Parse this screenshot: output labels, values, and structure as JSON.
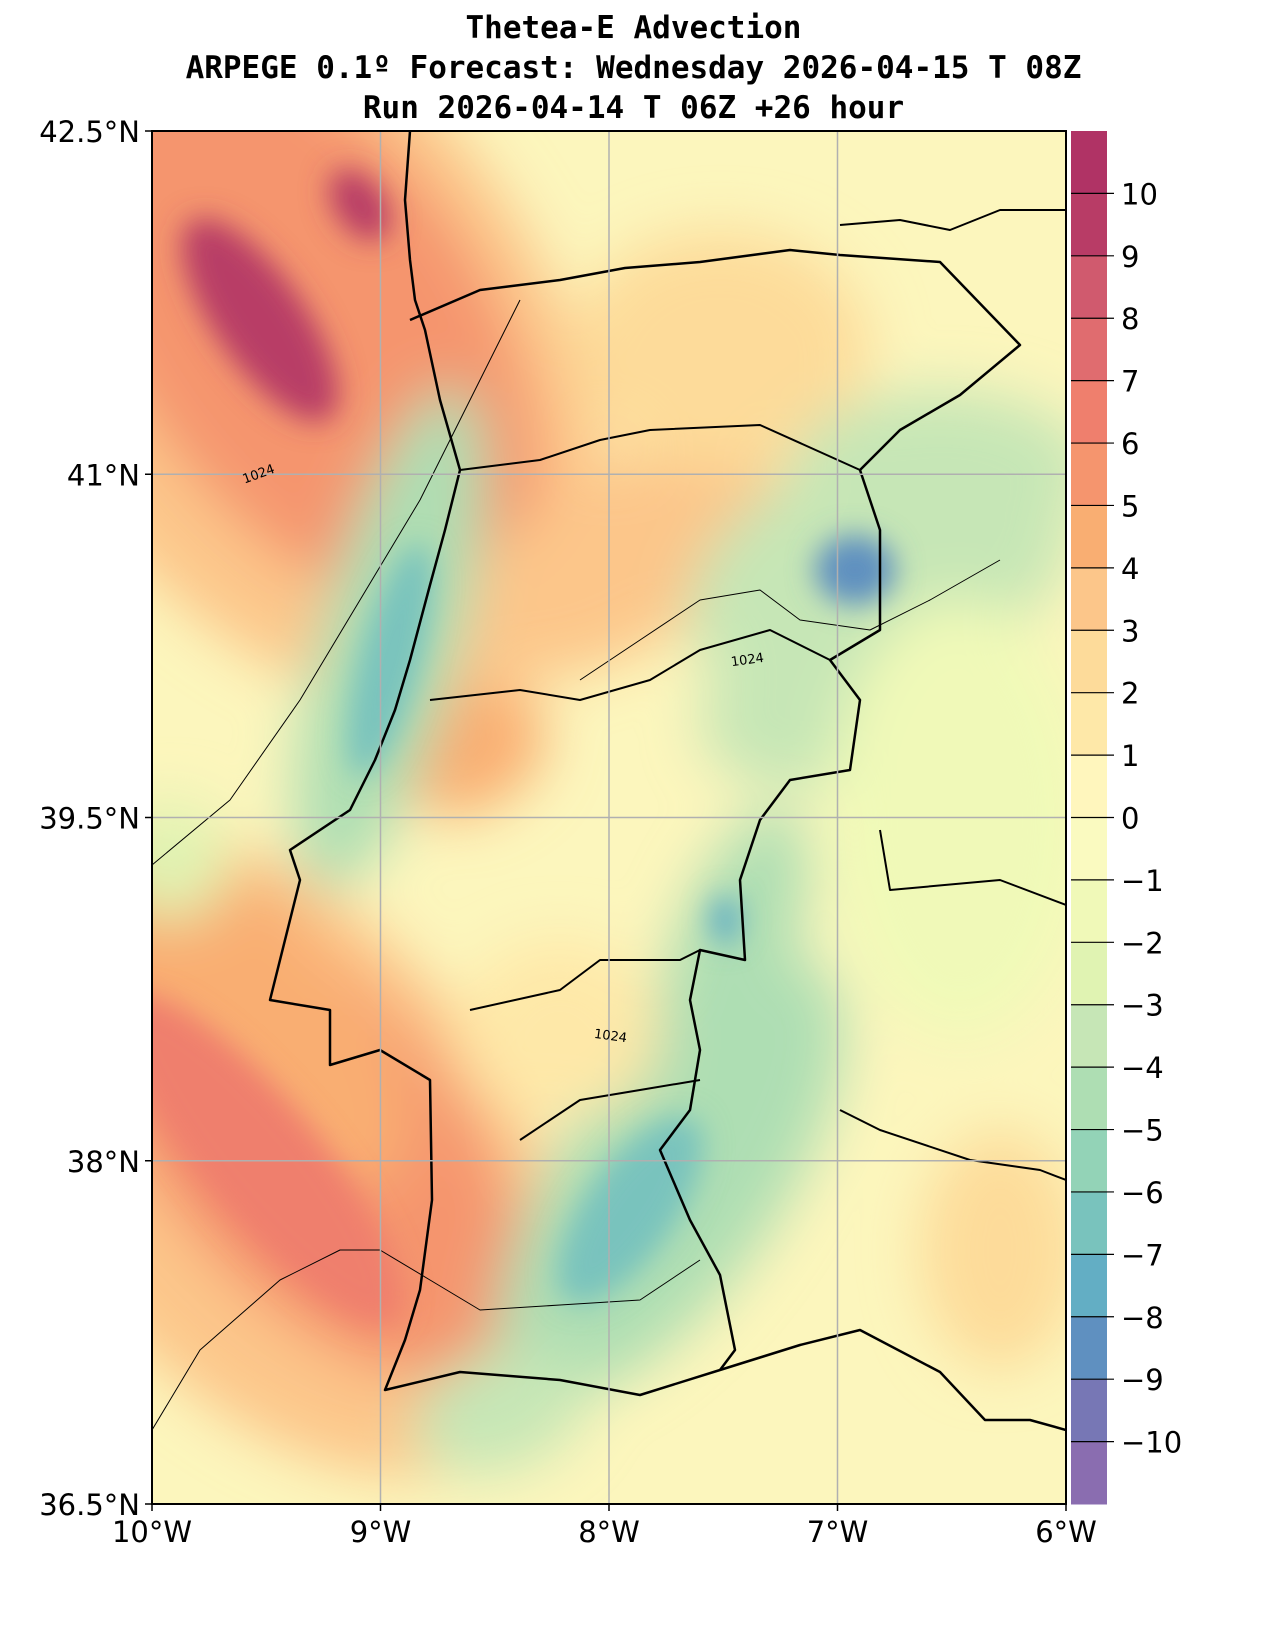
{
  "title": {
    "line1": "Thetea-E Advection",
    "line2": "ARPEGE 0.1º Forecast: Wednesday 2026-04-15 T 08Z",
    "line3": "Run 2026-04-14 T 06Z +26 hour"
  },
  "chart_data": {
    "type": "heatmap",
    "title": "Thetea-E Advection",
    "xlim": [
      -10,
      -6
    ],
    "ylim": [
      36.5,
      42.5
    ],
    "x_ticks": [
      -10,
      -9,
      -8,
      -7,
      -6
    ],
    "x_tick_labels": [
      "10°W",
      "9°W",
      "8°W",
      "7°W",
      "6°W"
    ],
    "y_ticks": [
      36.5,
      38,
      39.5,
      41,
      42.5
    ],
    "y_tick_labels": [
      "36.5°N",
      "38°N",
      "39.5°N",
      "41°N",
      "42.5°N"
    ],
    "grid": true,
    "colorbar": {
      "range": [
        -11,
        11
      ],
      "ticks": [
        10,
        9,
        8,
        7,
        6,
        5,
        4,
        3,
        2,
        1,
        0,
        -1,
        -2,
        -3,
        -4,
        -5,
        -6,
        -7,
        -8,
        -9,
        -10
      ],
      "tick_labels": [
        "10",
        "9",
        "8",
        "7",
        "6",
        "5",
        "4",
        "3",
        "2",
        "1",
        "0",
        "−1",
        "−2",
        "−3",
        "−4",
        "−5",
        "−6",
        "−7",
        "−8",
        "−9",
        "−10"
      ],
      "colors": [
        "#8a6db0",
        "#7777b5",
        "#5f90c0",
        "#63aec4",
        "#79c3bd",
        "#93d3b7",
        "#aedeb3",
        "#c6e6b6",
        "#e0f3b2",
        "#f0f9b8",
        "#fafac0",
        "#fff6bd",
        "#fee8a8",
        "#fddb9a",
        "#fcc68a",
        "#f9ae72",
        "#f5956e",
        "#ef7f6d",
        "#e06c6f",
        "#d05a6e",
        "#b83c66",
        "#b03365"
      ]
    },
    "contour_labels": [
      "1024",
      "1024",
      "1024"
    ],
    "features": [
      {
        "name": "positive max NW offshore",
        "lon": -9.5,
        "lat": 41.9,
        "value": 10
      },
      {
        "name": "positive max SW offshore",
        "lon": -9.4,
        "lat": 38.0,
        "value": 7
      },
      {
        "name": "negative min east",
        "lon": -7.0,
        "lat": 40.6,
        "value": -9
      },
      {
        "name": "negative min coastal band",
        "lon": -9.0,
        "lat": 40.2,
        "value": -7
      },
      {
        "name": "negative min south",
        "lon": -7.9,
        "lat": 37.6,
        "value": -7
      }
    ]
  }
}
